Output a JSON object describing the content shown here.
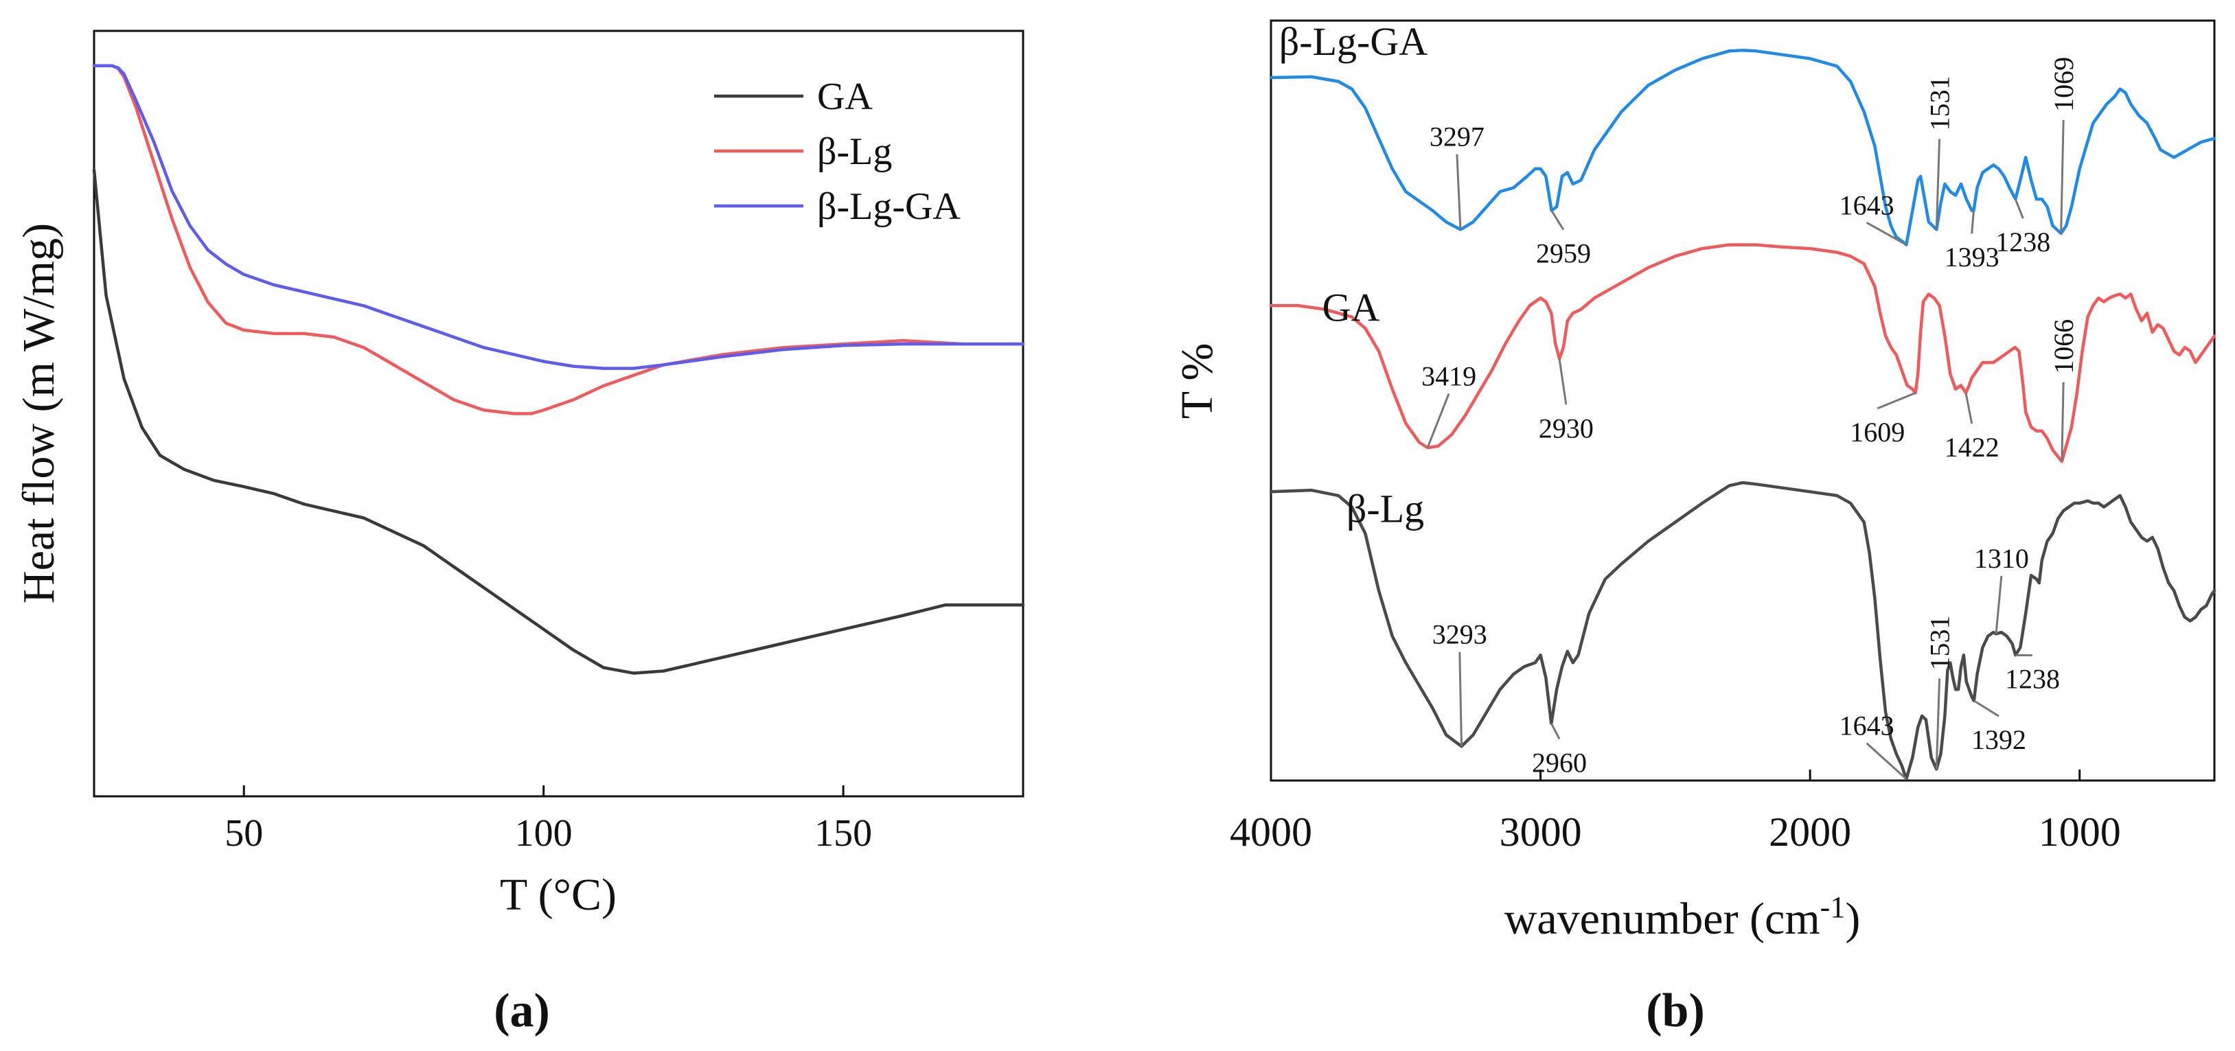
{
  "chart_data": [
    {
      "panel": "a",
      "panel_label": "(a)",
      "type": "line",
      "xlabel": "T (°C)",
      "ylabel": "Heat flow (m W/mg)",
      "xlim": [
        25,
        180
      ],
      "ylim": [
        -1.05,
        0.05
      ],
      "xticks": [
        50,
        100,
        150
      ],
      "y_ticks_shown": false,
      "legend": "top-right",
      "series": [
        {
          "name": "GA",
          "color": "#3a3a3a",
          "x": [
            25,
            27,
            30,
            33,
            36,
            40,
            45,
            50,
            55,
            60,
            65,
            70,
            75,
            80,
            85,
            90,
            95,
            100,
            105,
            110,
            115,
            120,
            125,
            130,
            140,
            150,
            160,
            167,
            175,
            180
          ],
          "y": [
            -0.15,
            -0.33,
            -0.45,
            -0.52,
            -0.56,
            -0.58,
            -0.596,
            -0.605,
            -0.615,
            -0.63,
            -0.64,
            -0.65,
            -0.67,
            -0.69,
            -0.72,
            -0.75,
            -0.78,
            -0.81,
            -0.84,
            -0.865,
            -0.873,
            -0.87,
            -0.86,
            -0.85,
            -0.83,
            -0.81,
            -0.79,
            -0.775,
            -0.775,
            -0.775
          ]
        },
        {
          "name": "β-Lg",
          "color": "#f05a5a",
          "x": [
            25,
            27,
            28,
            29,
            30,
            32,
            35,
            38,
            41,
            44,
            47,
            50,
            55,
            60,
            65,
            70,
            75,
            80,
            85,
            90,
            95,
            98,
            100,
            105,
            110,
            115,
            120,
            130,
            140,
            150,
            160,
            170,
            180
          ],
          "y": [
            0.0,
            0.0,
            0.0,
            -0.004,
            -0.016,
            -0.06,
            -0.14,
            -0.22,
            -0.29,
            -0.34,
            -0.37,
            -0.38,
            -0.385,
            -0.385,
            -0.39,
            -0.405,
            -0.43,
            -0.455,
            -0.48,
            -0.495,
            -0.5,
            -0.5,
            -0.495,
            -0.48,
            -0.46,
            -0.445,
            -0.43,
            -0.415,
            -0.405,
            -0.4,
            -0.395,
            -0.4,
            -0.4
          ]
        },
        {
          "name": "β-Lg-GA",
          "color": "#5c5cf0",
          "x": [
            25,
            27,
            28,
            29,
            30,
            32,
            35,
            38,
            41,
            44,
            47,
            50,
            55,
            60,
            65,
            70,
            75,
            80,
            85,
            90,
            95,
            100,
            105,
            110,
            115,
            120,
            130,
            140,
            150,
            160,
            170,
            180
          ],
          "y": [
            0.0,
            0.0,
            0.0,
            -0.003,
            -0.012,
            -0.05,
            -0.11,
            -0.18,
            -0.23,
            -0.265,
            -0.285,
            -0.3,
            -0.315,
            -0.325,
            -0.335,
            -0.345,
            -0.36,
            -0.375,
            -0.39,
            -0.405,
            -0.415,
            -0.425,
            -0.432,
            -0.435,
            -0.435,
            -0.43,
            -0.418,
            -0.408,
            -0.402,
            -0.4,
            -0.4,
            -0.4
          ]
        }
      ]
    },
    {
      "panel": "b",
      "panel_label": "(b)",
      "type": "line",
      "xlabel": "wavenumber (cm",
      "xlabel_superscript": "-1",
      "xlabel_tail": ")",
      "ylabel": "T %",
      "xlim": [
        4000,
        500
      ],
      "ylim": [
        0,
        100
      ],
      "xticks": [
        4000,
        3000,
        2000,
        1000
      ],
      "y_ticks_shown": false,
      "series": [
        {
          "name": "β-Lg-GA",
          "color": "#1f8be6",
          "label_pos": [
            3970,
            95.5
          ],
          "x": [
            4000,
            3850,
            3750,
            3700,
            3650,
            3600,
            3550,
            3500,
            3400,
            3350,
            3297,
            3250,
            3200,
            3150,
            3100,
            3050,
            3020,
            3000,
            2980,
            2959,
            2940,
            2920,
            2900,
            2880,
            2850,
            2800,
            2700,
            2600,
            2500,
            2400,
            2300,
            2250,
            2200,
            2100,
            2000,
            1900,
            1850,
            1800,
            1760,
            1740,
            1720,
            1700,
            1680,
            1660,
            1643,
            1620,
            1600,
            1590,
            1580,
            1560,
            1545,
            1531,
            1515,
            1500,
            1480,
            1460,
            1440,
            1420,
            1400,
            1393,
            1380,
            1360,
            1340,
            1320,
            1300,
            1280,
            1260,
            1238,
            1220,
            1200,
            1180,
            1160,
            1140,
            1120,
            1100,
            1069,
            1050,
            1030,
            1000,
            950,
            900,
            870,
            850,
            830,
            810,
            780,
            750,
            720,
            700,
            650,
            600,
            550,
            500
          ],
          "y": [
            92.5,
            92.6,
            92.0,
            91.0,
            88.5,
            84.5,
            80.5,
            77.5,
            75.0,
            73.5,
            72.5,
            73.5,
            75.5,
            77.5,
            78.0,
            79.5,
            80.5,
            80.5,
            79.5,
            75.0,
            75.5,
            79.5,
            80.0,
            78.5,
            79.0,
            83.0,
            88.0,
            91.5,
            93.5,
            95.0,
            96.0,
            96.1,
            96.0,
            95.5,
            95.0,
            94.0,
            92.0,
            88.0,
            83.5,
            79.5,
            75.5,
            73.0,
            71.5,
            71.0,
            70.5,
            75.0,
            79.0,
            79.5,
            77.5,
            73.5,
            73.0,
            72.5,
            76.0,
            78.5,
            77.5,
            77.0,
            78.5,
            76.5,
            75.0,
            75.0,
            78.0,
            80.0,
            80.5,
            81.0,
            80.5,
            79.5,
            78.0,
            76.5,
            79.0,
            82.0,
            79.0,
            76.5,
            76.5,
            75.5,
            73.0,
            72.0,
            73.0,
            75.5,
            80.5,
            86.5,
            89.0,
            90.0,
            91.0,
            90.5,
            89.0,
            87.5,
            86.5,
            84.5,
            83.0,
            82.0,
            83.0,
            84.0,
            84.5
          ]
        },
        {
          "name": "GA",
          "color": "#f05a5a",
          "label_pos": [
            3810,
            60.5
          ],
          "x": [
            4000,
            3900,
            3800,
            3700,
            3650,
            3600,
            3550,
            3500,
            3450,
            3419,
            3380,
            3330,
            3280,
            3230,
            3180,
            3130,
            3080,
            3040,
            3000,
            2980,
            2960,
            2945,
            2930,
            2915,
            2900,
            2880,
            2850,
            2800,
            2700,
            2600,
            2500,
            2400,
            2300,
            2200,
            2100,
            2000,
            1900,
            1850,
            1800,
            1760,
            1740,
            1720,
            1700,
            1680,
            1660,
            1640,
            1620,
            1609,
            1600,
            1590,
            1580,
            1560,
            1540,
            1520,
            1500,
            1480,
            1460,
            1440,
            1422,
            1410,
            1400,
            1380,
            1360,
            1340,
            1320,
            1300,
            1280,
            1260,
            1240,
            1225,
            1210,
            1200,
            1180,
            1160,
            1140,
            1120,
            1100,
            1066,
            1050,
            1030,
            1010,
            990,
            970,
            950,
            930,
            910,
            890,
            870,
            850,
            830,
            810,
            790,
            770,
            750,
            730,
            710,
            690,
            670,
            650,
            630,
            610,
            590,
            570,
            550,
            530,
            510,
            500
          ],
          "y": [
            62.5,
            62.5,
            62.0,
            61.0,
            59.5,
            56.5,
            51.5,
            47.0,
            44.5,
            43.8,
            44.0,
            45.5,
            48.0,
            51.0,
            54.0,
            57.5,
            60.5,
            62.5,
            63.5,
            63.0,
            61.5,
            57.5,
            55.5,
            57.0,
            60.5,
            61.5,
            62.0,
            63.5,
            65.5,
            67.5,
            69.0,
            70.0,
            70.5,
            70.5,
            70.2,
            70.0,
            69.5,
            69.0,
            68.0,
            65.0,
            61.5,
            58.5,
            57.0,
            56.0,
            54.0,
            52.0,
            51.5,
            51.0,
            53.5,
            59.0,
            63.0,
            64.0,
            63.5,
            62.5,
            58.5,
            53.5,
            51.5,
            52.0,
            51.0,
            52.0,
            53.0,
            54.0,
            55.0,
            55.0,
            55.0,
            55.5,
            56.0,
            56.5,
            57.0,
            56.5,
            52.0,
            48.5,
            46.5,
            46.0,
            46.0,
            45.0,
            43.5,
            42.0,
            44.0,
            46.5,
            51.0,
            56.5,
            61.0,
            62.5,
            63.5,
            63.0,
            63.5,
            63.8,
            64.0,
            63.5,
            64.0,
            62.0,
            60.5,
            61.5,
            59.0,
            60.0,
            59.5,
            58.0,
            56.5,
            56.0,
            57.0,
            56.5,
            55.0,
            56.0,
            57.0,
            58.0,
            58.5
          ]
        },
        {
          "name": "β-Lg",
          "color": "#4a4a4a",
          "label_pos": [
            3720,
            34.0
          ],
          "x": [
            4000,
            3850,
            3750,
            3700,
            3650,
            3600,
            3550,
            3500,
            3450,
            3400,
            3350,
            3293,
            3250,
            3200,
            3150,
            3100,
            3060,
            3020,
            3000,
            2980,
            2960,
            2940,
            2920,
            2900,
            2880,
            2860,
            2820,
            2760,
            2700,
            2600,
            2500,
            2400,
            2300,
            2250,
            2200,
            2100,
            2000,
            1900,
            1850,
            1800,
            1780,
            1760,
            1740,
            1720,
            1700,
            1680,
            1660,
            1643,
            1620,
            1600,
            1585,
            1570,
            1550,
            1531,
            1515,
            1500,
            1490,
            1480,
            1470,
            1460,
            1450,
            1440,
            1430,
            1420,
            1400,
            1392,
            1380,
            1360,
            1340,
            1320,
            1310,
            1290,
            1270,
            1250,
            1238,
            1220,
            1200,
            1180,
            1160,
            1150,
            1140,
            1120,
            1100,
            1080,
            1060,
            1040,
            1020,
            1000,
            970,
            950,
            930,
            910,
            890,
            870,
            850,
            830,
            810,
            790,
            770,
            750,
            730,
            710,
            690,
            670,
            650,
            630,
            610,
            590,
            570,
            550,
            530,
            510,
            500
          ],
          "y": [
            38.0,
            38.2,
            37.5,
            36.0,
            32.5,
            25.0,
            19.0,
            15.5,
            12.5,
            9.5,
            6.0,
            4.5,
            6.0,
            9.0,
            12.0,
            14.0,
            15.0,
            15.5,
            16.5,
            13.5,
            7.5,
            12.0,
            15.0,
            17.0,
            15.5,
            16.5,
            22.0,
            26.5,
            28.5,
            31.5,
            34.0,
            36.5,
            38.8,
            39.2,
            39.0,
            38.5,
            38.0,
            37.5,
            36.5,
            34.0,
            30.0,
            24.0,
            16.0,
            9.0,
            5.5,
            3.5,
            2.0,
            0.2,
            3.0,
            7.0,
            8.5,
            8.0,
            3.0,
            1.5,
            3.5,
            8.5,
            14.5,
            15.5,
            13.5,
            12.0,
            12.0,
            15.0,
            16.5,
            13.0,
            11.0,
            10.5,
            14.0,
            17.5,
            19.0,
            19.5,
            19.3,
            19.5,
            19.0,
            18.0,
            16.5,
            17.5,
            22.0,
            27.0,
            26.5,
            26.0,
            29.0,
            31.5,
            32.5,
            34.5,
            35.5,
            36.0,
            36.5,
            36.5,
            36.8,
            36.5,
            36.5,
            36.0,
            36.5,
            37.0,
            37.5,
            36.0,
            34.0,
            33.0,
            32.0,
            31.5,
            32.0,
            30.5,
            28.0,
            26.0,
            25.0,
            23.0,
            21.5,
            21.0,
            21.5,
            22.5,
            23.0,
            24.5,
            25.0
          ]
        }
      ],
      "annotations": [
        {
          "text": "3297",
          "x": 3297,
          "y": 72.5,
          "label_x": 3310,
          "label_y": 83.5
        },
        {
          "text": "2959",
          "x": 2959,
          "y": 75.0,
          "label_x": 2915,
          "label_y": 68.5
        },
        {
          "text": "1643",
          "x": 1643,
          "y": 70.5,
          "label_x": 1790,
          "label_y": 74.5
        },
        {
          "text": "1531",
          "x": 1531,
          "y": 72.5,
          "label_x": 1520,
          "label_y": 85.5
        },
        {
          "text": "1393",
          "x": 1393,
          "y": 75.0,
          "label_x": 1400,
          "label_y": 68.0
        },
        {
          "text": "1238",
          "x": 1238,
          "y": 76.5,
          "label_x": 1210,
          "label_y": 70.0
        },
        {
          "text": "1069",
          "x": 1069,
          "y": 72.0,
          "label_x": 1060,
          "label_y": 88.0
        },
        {
          "text": "3419",
          "x": 3419,
          "y": 43.8,
          "label_x": 3340,
          "label_y": 52.0
        },
        {
          "text": "2930",
          "x": 2930,
          "y": 55.5,
          "label_x": 2905,
          "label_y": 45.5
        },
        {
          "text": "1609",
          "x": 1609,
          "y": 51.0,
          "label_x": 1750,
          "label_y": 45.0
        },
        {
          "text": "1422",
          "x": 1422,
          "y": 51.0,
          "label_x": 1400,
          "label_y": 43.0
        },
        {
          "text": "1066",
          "x": 1066,
          "y": 42.0,
          "label_x": 1060,
          "label_y": 53.5
        },
        {
          "text": "3293",
          "x": 3293,
          "y": 4.5,
          "label_x": 3300,
          "label_y": 18.0
        },
        {
          "text": "2960",
          "x": 2960,
          "y": 7.5,
          "label_x": 2930,
          "label_y": 1.5
        },
        {
          "text": "1643",
          "x": 1643,
          "y": 0.2,
          "label_x": 1790,
          "label_y": 6.0
        },
        {
          "text": "1531",
          "x": 1531,
          "y": 1.5,
          "label_x": 1520,
          "label_y": 14.5
        },
        {
          "text": "1392",
          "x": 1392,
          "y": 10.5,
          "label_x": 1300,
          "label_y": 4.5
        },
        {
          "text": "1310",
          "x": 1310,
          "y": 19.3,
          "label_x": 1290,
          "label_y": 28.0
        },
        {
          "text": "1238",
          "x": 1238,
          "y": 16.5,
          "label_x": 1175,
          "label_y": 12.5
        }
      ]
    }
  ]
}
